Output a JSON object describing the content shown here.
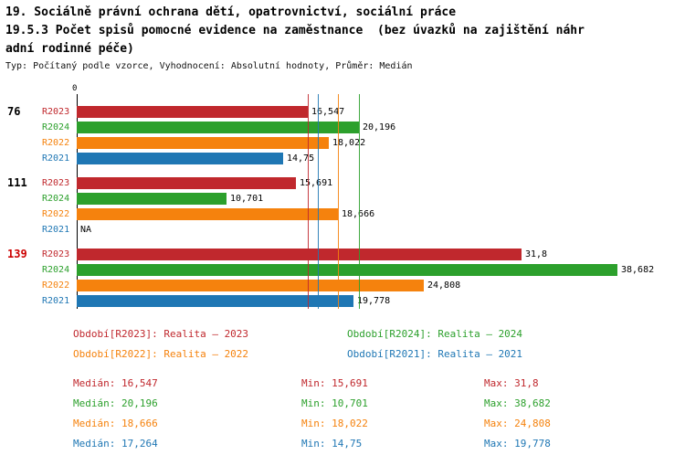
{
  "header": {
    "title": "19. Sociálně právní ochrana dětí, opatrovnictví, sociální práce",
    "subtitle_lines": [
      "19.5.3 Počet spisů pomocné evidence na zaměstnance  (bez úvazků na zajištění náhr",
      "adní rodinné péče)"
    ],
    "meta": "Typ: Počítaný podle vzorce, Vyhodnocení: Absolutní hodnoty, Průměr: Medián"
  },
  "chart_data": {
    "type": "bar",
    "orientation": "horizontal",
    "x_axis": {
      "start_label": "0",
      "min": 0,
      "max": 40
    },
    "series": [
      {
        "name": "R2023",
        "color": "#c0282d"
      },
      {
        "name": "R2024",
        "color": "#2ca02c"
      },
      {
        "name": "R2022",
        "color": "#f5820d"
      },
      {
        "name": "R2021",
        "color": "#1f77b4"
      }
    ],
    "groups": [
      {
        "label": "76",
        "label_color": "#000000",
        "values": {
          "R2023": 16.547,
          "R2024": 20.196,
          "R2022": 18.022,
          "R2021": 14.75
        },
        "value_labels": {
          "R2023": "16,547",
          "R2024": "20,196",
          "R2022": "18,022",
          "R2021": "14,75"
        }
      },
      {
        "label": "111",
        "label_color": "#000000",
        "values": {
          "R2023": 15.691,
          "R2024": 10.701,
          "R2022": 18.666,
          "R2021": null
        },
        "value_labels": {
          "R2023": "15,691",
          "R2024": "10,701",
          "R2022": "18,666",
          "R2021": "NA"
        }
      },
      {
        "label": "139",
        "label_color": "#cc0000",
        "values": {
          "R2023": 31.8,
          "R2024": 38.682,
          "R2022": 24.808,
          "R2021": 19.778
        },
        "value_labels": {
          "R2023": "31,8",
          "R2024": "38,682",
          "R2022": "24,808",
          "R2021": "19,778"
        }
      }
    ],
    "median_lines": [
      {
        "series": "R2023",
        "value": 16.547
      },
      {
        "series": "R2024",
        "value": 20.196
      },
      {
        "series": "R2022",
        "value": 18.666
      },
      {
        "series": "R2021",
        "value": 17.264
      }
    ]
  },
  "legend": [
    {
      "label": "Období[R2023]: Realita – 2023",
      "color": "#c0282d"
    },
    {
      "label": "Období[R2024]: Realita – 2024",
      "color": "#2ca02c"
    },
    {
      "label": "Období[R2022]: Realita – 2022",
      "color": "#f5820d"
    },
    {
      "label": "Období[R2021]: Realita – 2021",
      "color": "#1f77b4"
    }
  ],
  "stats": [
    {
      "color": "#c0282d",
      "median": "Medián: 16,547",
      "min": "Min: 15,691",
      "max": "Max: 31,8"
    },
    {
      "color": "#2ca02c",
      "median": "Medián: 20,196",
      "min": "Min: 10,701",
      "max": "Max: 38,682"
    },
    {
      "color": "#f5820d",
      "median": "Medián: 18,666",
      "min": "Min: 18,022",
      "max": "Max: 24,808"
    },
    {
      "color": "#1f77b4",
      "median": "Medián: 17,264",
      "min": "Min: 14,75",
      "max": "Max: 19,778"
    }
  ]
}
